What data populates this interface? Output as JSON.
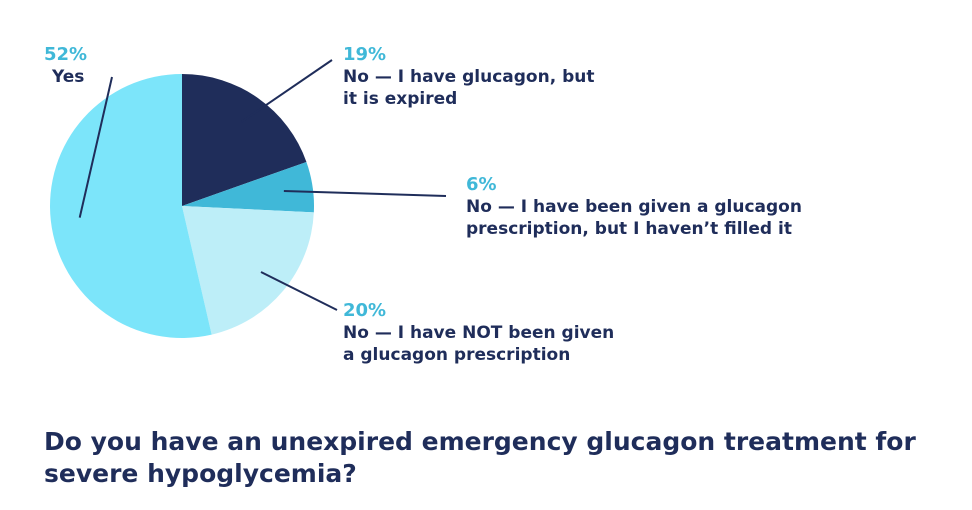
{
  "chart_data": {
    "type": "pie",
    "title": "Do you have an unexpired emergency glucagon treatment for severe hypoglycemia?",
    "slices": [
      {
        "pct_label": "19%",
        "label": "No — I have glucagon, but it is expired",
        "label_lines": [
          "No — I have glucagon, but",
          "it is expired"
        ],
        "value": 19,
        "color": "#1f2d5a"
      },
      {
        "pct_label": "6%",
        "label": "No — I have been given a glucagon prescription, but I haven’t filled it",
        "label_lines": [
          "No — I have been given a glucagon",
          "prescription, but I haven’t filled it"
        ],
        "value": 6,
        "color": "#40b8d8"
      },
      {
        "pct_label": "20%",
        "label": "No — I have NOT been given a glucagon prescription",
        "label_lines": [
          "No — I have NOT been given",
          "a glucagon prescription"
        ],
        "value": 20,
        "color": "#bdeef8"
      },
      {
        "pct_label": "52%",
        "label": "Yes",
        "label_lines": [
          "Yes"
        ],
        "value": 52,
        "color": "#7ce5fa"
      }
    ],
    "legend": "none"
  }
}
